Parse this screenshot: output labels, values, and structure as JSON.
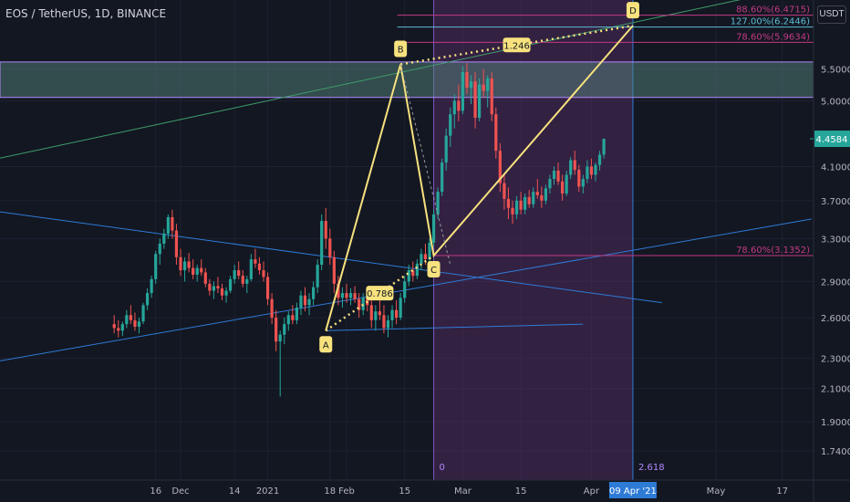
{
  "header": {
    "title": "EOS / TetherUS, 1D, BINANCE",
    "currency_label": "USDT"
  },
  "colors": {
    "bg": "#131722",
    "up": "#26a69a",
    "down": "#ef5350",
    "pattern": "#f7e27e",
    "blue_line": "#2e7bd6",
    "green_line": "#3f9e6b",
    "purple_zone": "#5b2e6b",
    "fib_magenta": "#c23a84",
    "price_badge": "#26a69a"
  },
  "chart_data": {
    "type": "candlestick",
    "symbol": "EOS/USDT",
    "interval": "1D",
    "ylim": [
      1.62,
      6.7
    ],
    "y_scale": "log",
    "yticks": [
      "5.5000",
      "5.0000",
      "4.1000",
      "3.7000",
      "3.3000",
      "2.9000",
      "2.6000",
      "2.3000",
      "2.1000",
      "1.9000",
      "1.7400"
    ],
    "ytick_values": [
      5.5,
      5.0,
      4.1,
      3.7,
      3.3,
      2.9,
      2.6,
      2.3,
      2.1,
      1.9,
      1.74
    ],
    "xticks": [
      "16",
      "Dec",
      "14",
      "2021",
      "18",
      "Feb",
      "15",
      "Mar",
      "15",
      "Apr",
      "May",
      "17"
    ],
    "xtick_days": [
      -46,
      -40,
      -27,
      -19,
      -4,
      0,
      14,
      28,
      42,
      59,
      89,
      105
    ],
    "current_price": "4.4584",
    "current_price_value": 4.4584,
    "candles_day0": -56,
    "candles_ohlc": [
      [
        2.55,
        2.62,
        2.48,
        2.52
      ],
      [
        2.52,
        2.58,
        2.45,
        2.5
      ],
      [
        2.5,
        2.57,
        2.46,
        2.55
      ],
      [
        2.55,
        2.66,
        2.52,
        2.62
      ],
      [
        2.62,
        2.7,
        2.55,
        2.58
      ],
      [
        2.58,
        2.64,
        2.5,
        2.53
      ],
      [
        2.53,
        2.6,
        2.48,
        2.57
      ],
      [
        2.57,
        2.72,
        2.55,
        2.7
      ],
      [
        2.7,
        2.84,
        2.66,
        2.8
      ],
      [
        2.8,
        2.95,
        2.76,
        2.92
      ],
      [
        2.92,
        3.18,
        2.88,
        3.15
      ],
      [
        3.15,
        3.3,
        3.05,
        3.25
      ],
      [
        3.25,
        3.4,
        3.2,
        3.35
      ],
      [
        3.35,
        3.55,
        3.3,
        3.52
      ],
      [
        3.52,
        3.6,
        3.3,
        3.38
      ],
      [
        3.38,
        3.45,
        3.05,
        3.12
      ],
      [
        3.12,
        3.2,
        2.95,
        3.0
      ],
      [
        3.0,
        3.12,
        2.9,
        3.08
      ],
      [
        3.08,
        3.16,
        2.98,
        3.02
      ],
      [
        3.02,
        3.1,
        2.92,
        2.96
      ],
      [
        2.96,
        3.05,
        2.9,
        3.02
      ],
      [
        3.02,
        3.1,
        2.95,
        2.98
      ],
      [
        2.98,
        3.02,
        2.85,
        2.88
      ],
      [
        2.88,
        2.92,
        2.78,
        2.82
      ],
      [
        2.82,
        2.9,
        2.75,
        2.86
      ],
      [
        2.86,
        2.94,
        2.8,
        2.84
      ],
      [
        2.84,
        2.88,
        2.74,
        2.78
      ],
      [
        2.78,
        2.85,
        2.72,
        2.82
      ],
      [
        2.82,
        2.95,
        2.8,
        2.92
      ],
      [
        2.92,
        3.05,
        2.88,
        3.0
      ],
      [
        3.0,
        3.08,
        2.92,
        2.95
      ],
      [
        2.95,
        3.0,
        2.85,
        2.88
      ],
      [
        2.88,
        2.95,
        2.8,
        2.92
      ],
      [
        2.92,
        3.15,
        2.9,
        3.1
      ],
      [
        3.1,
        3.2,
        3.02,
        3.06
      ],
      [
        3.06,
        3.12,
        2.96,
        3.0
      ],
      [
        3.0,
        3.08,
        2.9,
        2.94
      ],
      [
        2.94,
        2.98,
        2.7,
        2.75
      ],
      [
        2.75,
        2.8,
        2.55,
        2.6
      ],
      [
        2.6,
        2.66,
        2.35,
        2.42
      ],
      [
        2.42,
        2.5,
        2.05,
        2.47
      ],
      [
        2.47,
        2.6,
        2.4,
        2.55
      ],
      [
        2.55,
        2.65,
        2.5,
        2.62
      ],
      [
        2.62,
        2.7,
        2.55,
        2.58
      ],
      [
        2.58,
        2.72,
        2.55,
        2.68
      ],
      [
        2.68,
        2.82,
        2.62,
        2.78
      ],
      [
        2.78,
        2.85,
        2.65,
        2.7
      ],
      [
        2.7,
        2.8,
        2.62,
        2.75
      ],
      [
        2.75,
        2.9,
        2.7,
        2.85
      ],
      [
        2.85,
        3.1,
        2.8,
        3.05
      ],
      [
        3.05,
        3.55,
        3.0,
        3.48
      ],
      [
        3.48,
        3.62,
        3.2,
        3.3
      ],
      [
        3.3,
        3.4,
        3.05,
        3.12
      ],
      [
        3.12,
        3.18,
        2.8,
        2.88
      ],
      [
        2.88,
        2.95,
        2.7,
        2.76
      ],
      [
        2.76,
        2.85,
        2.68,
        2.8
      ],
      [
        2.8,
        2.88,
        2.72,
        2.76
      ],
      [
        2.76,
        2.84,
        2.7,
        2.8
      ],
      [
        2.8,
        2.86,
        2.72,
        2.75
      ],
      [
        2.75,
        2.8,
        2.6,
        2.66
      ],
      [
        2.66,
        2.8,
        2.62,
        2.76
      ],
      [
        2.76,
        2.82,
        2.65,
        2.7
      ],
      [
        2.7,
        2.74,
        2.52,
        2.58
      ],
      [
        2.58,
        2.7,
        2.5,
        2.65
      ],
      [
        2.65,
        2.75,
        2.58,
        2.62
      ],
      [
        2.62,
        2.7,
        2.48,
        2.52
      ],
      [
        2.52,
        2.62,
        2.45,
        2.58
      ],
      [
        2.58,
        2.7,
        2.52,
        2.66
      ],
      [
        2.66,
        2.74,
        2.55,
        2.6
      ],
      [
        2.6,
        2.8,
        2.58,
        2.76
      ],
      [
        2.76,
        2.95,
        2.72,
        2.9
      ],
      [
        2.9,
        3.05,
        2.86,
        3.0
      ],
      [
        3.0,
        3.08,
        2.9,
        2.95
      ],
      [
        2.95,
        3.1,
        2.92,
        3.06
      ],
      [
        3.06,
        3.2,
        3.0,
        3.15
      ],
      [
        3.15,
        3.25,
        3.05,
        3.1
      ],
      [
        3.1,
        3.3,
        3.06,
        3.26
      ],
      [
        3.26,
        3.6,
        3.22,
        3.55
      ],
      [
        3.55,
        3.85,
        3.5,
        3.8
      ],
      [
        3.8,
        4.2,
        3.75,
        4.15
      ],
      [
        4.15,
        4.6,
        4.05,
        4.5
      ],
      [
        4.5,
        4.9,
        4.35,
        4.8
      ],
      [
        4.8,
        5.1,
        4.6,
        5.0
      ],
      [
        5.0,
        5.25,
        4.7,
        4.85
      ],
      [
        4.85,
        5.55,
        4.8,
        5.45
      ],
      [
        5.45,
        5.6,
        5.1,
        5.2
      ],
      [
        5.2,
        5.4,
        4.95,
        5.3
      ],
      [
        5.3,
        5.45,
        4.6,
        4.75
      ],
      [
        4.75,
        5.35,
        4.7,
        5.25
      ],
      [
        5.25,
        5.5,
        5.05,
        5.15
      ],
      [
        5.15,
        5.4,
        4.9,
        5.35
      ],
      [
        5.35,
        5.45,
        4.7,
        4.8
      ],
      [
        4.8,
        4.9,
        4.2,
        4.3
      ],
      [
        4.3,
        4.4,
        3.8,
        3.9
      ],
      [
        3.9,
        4.0,
        3.6,
        3.72
      ],
      [
        3.72,
        3.85,
        3.5,
        3.62
      ],
      [
        3.62,
        3.7,
        3.45,
        3.55
      ],
      [
        3.55,
        3.75,
        3.5,
        3.7
      ],
      [
        3.7,
        3.8,
        3.55,
        3.6
      ],
      [
        3.6,
        3.78,
        3.55,
        3.74
      ],
      [
        3.74,
        3.82,
        3.62,
        3.66
      ],
      [
        3.66,
        3.85,
        3.62,
        3.8
      ],
      [
        3.8,
        3.95,
        3.72,
        3.76
      ],
      [
        3.76,
        3.86,
        3.62,
        3.7
      ],
      [
        3.7,
        3.88,
        3.66,
        3.84
      ],
      [
        3.84,
        4.0,
        3.78,
        3.95
      ],
      [
        3.95,
        4.1,
        3.88,
        4.05
      ],
      [
        4.05,
        4.15,
        3.88,
        3.92
      ],
      [
        3.92,
        4.0,
        3.7,
        3.78
      ],
      [
        3.78,
        4.05,
        3.75,
        4.0
      ],
      [
        4.0,
        4.22,
        3.95,
        4.18
      ],
      [
        4.18,
        4.3,
        4.0,
        4.06
      ],
      [
        4.06,
        4.12,
        3.8,
        3.86
      ],
      [
        3.86,
        4.0,
        3.78,
        3.95
      ],
      [
        3.95,
        4.18,
        3.9,
        4.1
      ],
      [
        4.1,
        4.2,
        3.95,
        4.0
      ],
      [
        4.0,
        4.15,
        3.92,
        4.12
      ],
      [
        4.12,
        4.3,
        4.05,
        4.25
      ],
      [
        4.25,
        4.46,
        4.2,
        4.4584
      ]
    ],
    "pattern": {
      "name": "ABCD",
      "points": [
        {
          "label": "A",
          "day": -5,
          "price": 2.5
        },
        {
          "label": "B",
          "day": 13,
          "price": 5.58
        },
        {
          "label": "C",
          "day": 21,
          "price": 3.135
        },
        {
          "label": "D",
          "day": 69,
          "price": 6.27
        }
      ],
      "ratios": [
        "0.786",
        "1.246"
      ]
    },
    "fib_levels": [
      {
        "label": "88.60%(6.4715)",
        "price": 6.4715
      },
      {
        "label": "127.00%(6.2446)",
        "price": 6.2446
      },
      {
        "label": "78.60%(5.9634)",
        "price": 5.9634
      },
      {
        "label": "78.60%(3.1352)",
        "price": 3.1352
      }
    ],
    "resistance_zone": [
      5.05,
      5.62
    ],
    "time_zone": {
      "start_day": 21,
      "end_day": 69,
      "start_label": "0",
      "end_label": "2.618"
    },
    "target_date_label": "09 Apr '21",
    "extra_xtick": "4"
  }
}
